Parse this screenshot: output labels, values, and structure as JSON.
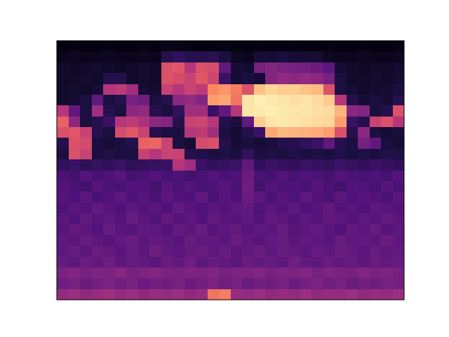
{
  "chart_data": {
    "type": "heatmap",
    "tick_labels": false,
    "zlim": [
      0,
      1
    ],
    "cells": [
      [
        0.02,
        0.03,
        0.02,
        0.02,
        0.03,
        0.02,
        0.02,
        0.03,
        0.02,
        0.04,
        0.04,
        0.03,
        0.02,
        0.02,
        0.03,
        0.02,
        0.02,
        0.03,
        0.02,
        0.02,
        0.03,
        0.02,
        0.02,
        0.03,
        0.02,
        0.02,
        0.03,
        0.02,
        0.02,
        0.03
      ],
      [
        0.05,
        0.06,
        0.05,
        0.05,
        0.06,
        0.05,
        0.05,
        0.06,
        0.05,
        0.15,
        0.18,
        0.15,
        0.15,
        0.16,
        0.12,
        0.06,
        0.05,
        0.1,
        0.1,
        0.12,
        0.1,
        0.1,
        0.1,
        0.06,
        0.05,
        0.05,
        0.06,
        0.05,
        0.05,
        0.06
      ],
      [
        0.08,
        0.07,
        0.08,
        0.09,
        0.08,
        0.07,
        0.08,
        0.09,
        0.08,
        0.6,
        0.62,
        0.5,
        0.6,
        0.58,
        0.3,
        0.1,
        0.09,
        0.35,
        0.38,
        0.36,
        0.35,
        0.34,
        0.32,
        0.28,
        0.1,
        0.08,
        0.07,
        0.08,
        0.08,
        0.09
      ],
      [
        0.08,
        0.08,
        0.09,
        0.08,
        0.15,
        0.15,
        0.08,
        0.09,
        0.08,
        0.6,
        0.58,
        0.55,
        0.62,
        0.56,
        0.2,
        0.1,
        0.12,
        0.1,
        0.38,
        0.42,
        0.4,
        0.42,
        0.4,
        0.35,
        0.12,
        0.08,
        0.08,
        0.09,
        0.08,
        0.1
      ],
      [
        0.08,
        0.09,
        0.08,
        0.1,
        0.5,
        0.52,
        0.45,
        0.1,
        0.09,
        0.55,
        0.5,
        0.55,
        0.52,
        0.75,
        0.78,
        0.72,
        0.6,
        0.88,
        0.92,
        0.9,
        0.9,
        0.88,
        0.86,
        0.6,
        0.12,
        0.1,
        0.08,
        0.09,
        0.1,
        0.12
      ],
      [
        0.08,
        0.1,
        0.12,
        0.3,
        0.12,
        0.15,
        0.35,
        0.33,
        0.12,
        0.15,
        0.4,
        0.42,
        0.38,
        0.8,
        0.82,
        0.7,
        0.95,
        0.97,
        0.96,
        0.95,
        0.94,
        0.95,
        0.93,
        0.9,
        0.5,
        0.15,
        0.1,
        0.12,
        0.1,
        0.15
      ],
      [
        0.5,
        0.3,
        0.12,
        0.45,
        0.15,
        0.12,
        0.4,
        0.42,
        0.15,
        0.12,
        0.18,
        0.45,
        0.45,
        0.2,
        0.3,
        0.5,
        0.95,
        0.96,
        0.97,
        0.96,
        0.95,
        0.95,
        0.94,
        0.93,
        0.85,
        0.4,
        0.38,
        0.12,
        0.15,
        0.6
      ],
      [
        0.65,
        0.4,
        0.12,
        0.15,
        0.2,
        0.5,
        0.52,
        0.48,
        0.4,
        0.38,
        0.15,
        0.55,
        0.56,
        0.5,
        0.15,
        0.12,
        0.3,
        0.9,
        0.95,
        0.96,
        0.95,
        0.94,
        0.93,
        0.92,
        0.8,
        0.2,
        0.15,
        0.55,
        0.6,
        0.5
      ],
      [
        0.6,
        0.62,
        0.55,
        0.15,
        0.12,
        0.58,
        0.62,
        0.55,
        0.15,
        0.12,
        0.12,
        0.5,
        0.52,
        0.45,
        0.12,
        0.1,
        0.15,
        0.2,
        0.82,
        0.86,
        0.85,
        0.84,
        0.83,
        0.8,
        0.6,
        0.15,
        0.4,
        0.12,
        0.1,
        0.12
      ],
      [
        0.15,
        0.6,
        0.58,
        0.12,
        0.1,
        0.12,
        0.15,
        0.65,
        0.66,
        0.55,
        0.12,
        0.1,
        0.58,
        0.6,
        0.15,
        0.1,
        0.12,
        0.1,
        0.12,
        0.15,
        0.15,
        0.18,
        0.2,
        0.3,
        0.15,
        0.12,
        0.35,
        0.3,
        0.12,
        0.1
      ],
      [
        0.12,
        0.6,
        0.55,
        0.12,
        0.13,
        0.12,
        0.12,
        0.55,
        0.5,
        0.55,
        0.55,
        0.15,
        0.14,
        0.12,
        0.13,
        0.12,
        0.18,
        0.12,
        0.13,
        0.12,
        0.14,
        0.12,
        0.13,
        0.12,
        0.14,
        0.12,
        0.13,
        0.12,
        0.14,
        0.13
      ],
      [
        0.18,
        0.2,
        0.17,
        0.19,
        0.18,
        0.2,
        0.17,
        0.18,
        0.19,
        0.2,
        0.5,
        0.45,
        0.2,
        0.18,
        0.19,
        0.2,
        0.3,
        0.18,
        0.2,
        0.19,
        0.18,
        0.2,
        0.19,
        0.18,
        0.2,
        0.19,
        0.18,
        0.2,
        0.19,
        0.18
      ],
      [
        0.24,
        0.22,
        0.26,
        0.23,
        0.25,
        0.27,
        0.22,
        0.24,
        0.26,
        0.23,
        0.25,
        0.22,
        0.24,
        0.26,
        0.23,
        0.25,
        0.32,
        0.24,
        0.22,
        0.26,
        0.23,
        0.25,
        0.24,
        0.22,
        0.26,
        0.24,
        0.23,
        0.25,
        0.22,
        0.26
      ],
      [
        0.26,
        0.24,
        0.22,
        0.27,
        0.24,
        0.23,
        0.26,
        0.25,
        0.22,
        0.27,
        0.24,
        0.26,
        0.23,
        0.25,
        0.27,
        0.24,
        0.33,
        0.22,
        0.26,
        0.24,
        0.25,
        0.23,
        0.27,
        0.24,
        0.22,
        0.26,
        0.25,
        0.23,
        0.27,
        0.24
      ],
      [
        0.27,
        0.25,
        0.28,
        0.24,
        0.26,
        0.29,
        0.25,
        0.27,
        0.24,
        0.28,
        0.26,
        0.25,
        0.29,
        0.24,
        0.27,
        0.25,
        0.32,
        0.28,
        0.24,
        0.27,
        0.25,
        0.29,
        0.26,
        0.24,
        0.28,
        0.25,
        0.27,
        0.26,
        0.24,
        0.28
      ],
      [
        0.25,
        0.28,
        0.26,
        0.3,
        0.27,
        0.25,
        0.29,
        0.26,
        0.28,
        0.25,
        0.3,
        0.27,
        0.25,
        0.28,
        0.26,
        0.29,
        0.3,
        0.25,
        0.28,
        0.26,
        0.29,
        0.25,
        0.27,
        0.3,
        0.26,
        0.28,
        0.25,
        0.29,
        0.27,
        0.26
      ],
      [
        0.28,
        0.26,
        0.3,
        0.27,
        0.29,
        0.26,
        0.31,
        0.28,
        0.26,
        0.3,
        0.27,
        0.29,
        0.26,
        0.3,
        0.28,
        0.27,
        0.29,
        0.26,
        0.3,
        0.28,
        0.26,
        0.29,
        0.27,
        0.3,
        0.28,
        0.26,
        0.29,
        0.27,
        0.3,
        0.28
      ],
      [
        0.27,
        0.3,
        0.28,
        0.26,
        0.31,
        0.28,
        0.27,
        0.3,
        0.29,
        0.26,
        0.3,
        0.28,
        0.31,
        0.27,
        0.29,
        0.3,
        0.27,
        0.29,
        0.28,
        0.31,
        0.27,
        0.29,
        0.3,
        0.28,
        0.26,
        0.3,
        0.28,
        0.31,
        0.27,
        0.29
      ],
      [
        0.3,
        0.28,
        0.31,
        0.29,
        0.27,
        0.3,
        0.32,
        0.28,
        0.3,
        0.29,
        0.27,
        0.31,
        0.29,
        0.3,
        0.28,
        0.32,
        0.29,
        0.27,
        0.3,
        0.31,
        0.28,
        0.3,
        0.29,
        0.27,
        0.31,
        0.29,
        0.3,
        0.28,
        0.32,
        0.29
      ],
      [
        0.29,
        0.31,
        0.28,
        0.32,
        0.3,
        0.28,
        0.31,
        0.29,
        0.33,
        0.3,
        0.28,
        0.3,
        0.32,
        0.29,
        0.31,
        0.28,
        0.3,
        0.32,
        0.29,
        0.31,
        0.3,
        0.28,
        0.31,
        0.29,
        0.32,
        0.3,
        0.28,
        0.31,
        0.29,
        0.3
      ],
      [
        0.31,
        0.29,
        0.32,
        0.3,
        0.33,
        0.29,
        0.31,
        0.3,
        0.28,
        0.32,
        0.3,
        0.33,
        0.29,
        0.31,
        0.3,
        0.28,
        0.32,
        0.3,
        0.31,
        0.29,
        0.33,
        0.3,
        0.29,
        0.32,
        0.3,
        0.31,
        0.29,
        0.32,
        0.3,
        0.31
      ],
      [
        0.36,
        0.38,
        0.35,
        0.37,
        0.36,
        0.39,
        0.35,
        0.37,
        0.38,
        0.36,
        0.35,
        0.37,
        0.36,
        0.38,
        0.35,
        0.37,
        0.36,
        0.38,
        0.35,
        0.37,
        0.36,
        0.38,
        0.35,
        0.37,
        0.36,
        0.35,
        0.38,
        0.36,
        0.37,
        0.35
      ],
      [
        0.33,
        0.35,
        0.32,
        0.34,
        0.36,
        0.33,
        0.35,
        0.32,
        0.34,
        0.33,
        0.35,
        0.32,
        0.34,
        0.36,
        0.33,
        0.35,
        0.32,
        0.34,
        0.33,
        0.35,
        0.32,
        0.34,
        0.36,
        0.33,
        0.35,
        0.32,
        0.34,
        0.33,
        0.35,
        0.34
      ],
      [
        0.42,
        0.44,
        0.41,
        0.43,
        0.45,
        0.42,
        0.44,
        0.41,
        0.43,
        0.42,
        0.44,
        0.41,
        0.43,
        0.7,
        0.72,
        0.43,
        0.42,
        0.44,
        0.41,
        0.43,
        0.42,
        0.44,
        0.41,
        0.43,
        0.42,
        0.44,
        0.41,
        0.43,
        0.42,
        0.44
      ]
    ]
  }
}
